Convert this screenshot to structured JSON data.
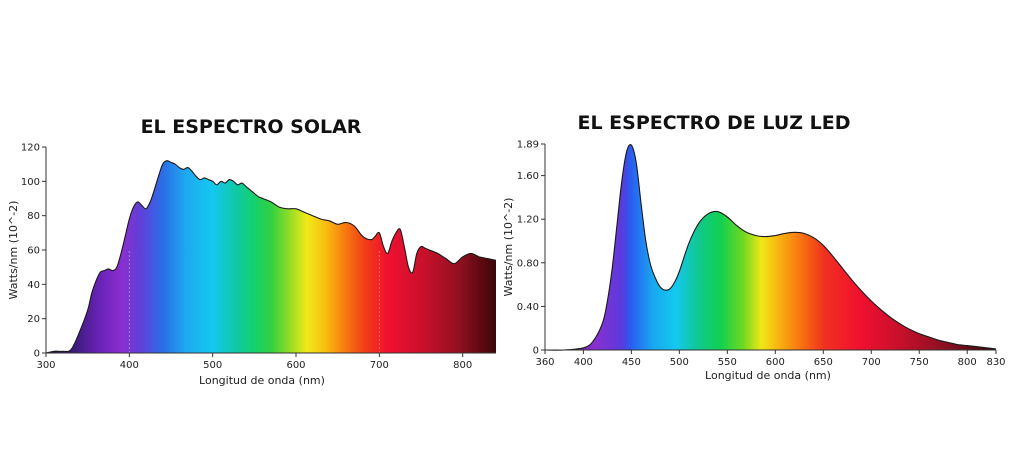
{
  "chart_data": [
    {
      "type": "area",
      "title": "EL ESPECTRO SOLAR",
      "xlabel": "Longitud de onda (nm)",
      "ylabel": "Watts/nm (10^-2)",
      "xlim": [
        300,
        840
      ],
      "ylim": [
        0,
        120
      ],
      "x_ticks": [
        "300",
        "400",
        "500",
        "600",
        "700",
        "800"
      ],
      "x_tick_values": [
        300,
        400,
        500,
        600,
        700,
        800
      ],
      "y_ticks": [
        "0",
        "20",
        "40",
        "60",
        "80",
        "100",
        "120"
      ],
      "y_tick_values": [
        0,
        20,
        40,
        60,
        80,
        100,
        120
      ],
      "grid": false,
      "fill": "visible-spectrum gradient",
      "x": [
        300,
        310,
        320,
        330,
        340,
        350,
        355,
        360,
        365,
        370,
        375,
        380,
        385,
        390,
        395,
        400,
        405,
        410,
        415,
        420,
        425,
        430,
        435,
        440,
        445,
        450,
        455,
        460,
        465,
        470,
        475,
        480,
        485,
        490,
        495,
        500,
        505,
        510,
        515,
        520,
        525,
        530,
        535,
        540,
        545,
        550,
        555,
        560,
        570,
        580,
        590,
        600,
        610,
        620,
        630,
        640,
        650,
        660,
        670,
        680,
        690,
        695,
        700,
        705,
        710,
        715,
        720,
        725,
        730,
        735,
        740,
        745,
        750,
        755,
        760,
        770,
        780,
        790,
        800,
        810,
        820,
        830,
        840
      ],
      "values": [
        0,
        1,
        1,
        2,
        12,
        25,
        35,
        42,
        47,
        48,
        49,
        48,
        50,
        58,
        68,
        78,
        85,
        88,
        86,
        84,
        88,
        95,
        103,
        110,
        112,
        111,
        110,
        108,
        107,
        108,
        106,
        103,
        101,
        102,
        101,
        100,
        98,
        100,
        99,
        101,
        100,
        98,
        99,
        97,
        95,
        93,
        91,
        90,
        88,
        85,
        84,
        84,
        82,
        80,
        78,
        77,
        75,
        76,
        74,
        68,
        66,
        68,
        70,
        62,
        58,
        65,
        70,
        72,
        62,
        50,
        47,
        58,
        62,
        61,
        60,
        58,
        55,
        52,
        56,
        58,
        56,
        55,
        54
      ]
    },
    {
      "type": "area",
      "title": "EL ESPECTRO DE LUZ LED",
      "xlabel": "Longitud de onda (nm)",
      "ylabel": "Watts/nm (10^-2)",
      "xlim": [
        360,
        830
      ],
      "ylim": [
        0,
        1.89
      ],
      "x_ticks": [
        "360",
        "400",
        "450",
        "500",
        "550",
        "600",
        "650",
        "700",
        "750",
        "800",
        "830"
      ],
      "x_tick_values": [
        360,
        400,
        450,
        500,
        550,
        600,
        650,
        700,
        750,
        800,
        830
      ],
      "y_ticks": [
        "0",
        "0.40",
        "0.80",
        "1.20",
        "1.60",
        "1.89"
      ],
      "y_tick_values": [
        0,
        0.4,
        0.8,
        1.2,
        1.6,
        1.89
      ],
      "grid": false,
      "fill": "visible-spectrum gradient",
      "x": [
        360,
        380,
        400,
        410,
        420,
        425,
        430,
        435,
        440,
        445,
        450,
        455,
        460,
        465,
        470,
        475,
        480,
        485,
        490,
        495,
        500,
        510,
        520,
        530,
        540,
        550,
        560,
        570,
        580,
        590,
        600,
        610,
        620,
        630,
        640,
        650,
        660,
        670,
        680,
        690,
        700,
        710,
        720,
        730,
        740,
        750,
        760,
        770,
        780,
        790,
        800,
        810,
        820,
        830
      ],
      "values": [
        0.0,
        0.0,
        0.02,
        0.08,
        0.25,
        0.45,
        0.75,
        1.15,
        1.55,
        1.82,
        1.88,
        1.72,
        1.35,
        1.0,
        0.78,
        0.66,
        0.58,
        0.55,
        0.56,
        0.62,
        0.72,
        0.98,
        1.16,
        1.25,
        1.27,
        1.22,
        1.14,
        1.08,
        1.05,
        1.04,
        1.05,
        1.07,
        1.08,
        1.07,
        1.03,
        0.96,
        0.86,
        0.75,
        0.64,
        0.54,
        0.45,
        0.37,
        0.3,
        0.24,
        0.19,
        0.15,
        0.12,
        0.09,
        0.07,
        0.05,
        0.04,
        0.03,
        0.02,
        0.01
      ]
    }
  ]
}
